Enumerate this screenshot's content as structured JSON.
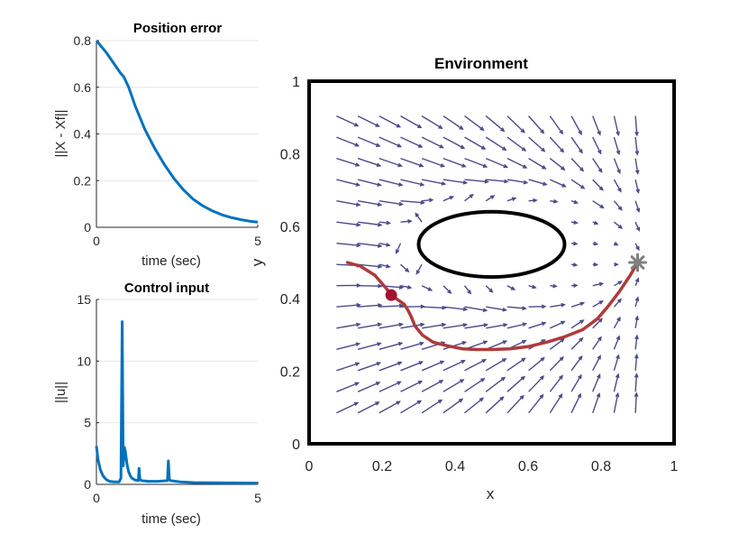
{
  "chart_data": [
    {
      "id": "position_error",
      "type": "line",
      "title": "Position error",
      "xlabel": "time (sec)",
      "ylabel": "||X - Xf||",
      "xlim": [
        0,
        5
      ],
      "ylim": [
        0,
        0.8
      ],
      "xticks": [
        0,
        5
      ],
      "yticks": [
        0,
        0.2,
        0.4,
        0.6,
        0.8
      ],
      "grid": "horizontal",
      "color": "#0072bd",
      "series": [
        {
          "name": "position error",
          "x": [
            0,
            0.3,
            0.6,
            0.75,
            0.85,
            1.0,
            1.2,
            1.5,
            1.8,
            2.1,
            2.4,
            2.7,
            3.0,
            3.3,
            3.6,
            3.9,
            4.2,
            4.5,
            4.8,
            5.0
          ],
          "y": [
            0.8,
            0.75,
            0.69,
            0.66,
            0.645,
            0.6,
            0.52,
            0.42,
            0.34,
            0.27,
            0.21,
            0.16,
            0.12,
            0.092,
            0.07,
            0.053,
            0.041,
            0.032,
            0.025,
            0.022
          ]
        }
      ]
    },
    {
      "id": "control_input",
      "type": "line",
      "title": "Control input",
      "xlabel": "time (sec)",
      "ylabel": "||u||",
      "xlim": [
        0,
        5
      ],
      "ylim": [
        0,
        15
      ],
      "xticks": [
        0,
        5
      ],
      "yticks": [
        0,
        5,
        10,
        15
      ],
      "grid": "horizontal",
      "color": "#0072bd",
      "series": [
        {
          "name": "control input",
          "x": [
            0,
            0.05,
            0.12,
            0.2,
            0.3,
            0.4,
            0.55,
            0.7,
            0.76,
            0.8,
            0.83,
            0.87,
            0.9,
            0.95,
            1.0,
            1.05,
            1.1,
            1.2,
            1.3,
            1.32,
            1.35,
            1.4,
            1.6,
            1.9,
            2.2,
            2.23,
            2.26,
            2.3,
            2.6,
            3.0,
            4.0,
            5.0
          ],
          "y": [
            3.1,
            2.0,
            1.2,
            0.7,
            0.4,
            0.25,
            0.2,
            0.2,
            0.5,
            13.2,
            1.5,
            3.0,
            2.6,
            1.6,
            1.0,
            0.7,
            0.5,
            0.35,
            0.3,
            1.3,
            0.4,
            0.3,
            0.25,
            0.25,
            0.3,
            1.9,
            0.4,
            0.3,
            0.2,
            0.15,
            0.12,
            0.1
          ]
        }
      ]
    },
    {
      "id": "environment",
      "type": "vector_field",
      "title": "Environment",
      "xlabel": "x",
      "ylabel": "y",
      "xlim": [
        0,
        1
      ],
      "ylim": [
        0,
        1
      ],
      "xticks": [
        0,
        0.2,
        0.4,
        0.6,
        0.8,
        1
      ],
      "yticks": [
        0,
        0.2,
        0.4,
        0.6,
        0.8,
        1
      ],
      "arrow_color": "#4a4a8c",
      "obstacle": {
        "shape": "ellipse",
        "cx": 0.5,
        "cy": 0.55,
        "rx": 0.2,
        "ry": 0.09,
        "color": "#000000"
      },
      "goal": {
        "x": 0.9,
        "y": 0.5,
        "marker": "asterisk",
        "color": "#808080"
      },
      "current_position": {
        "x": 0.225,
        "y": 0.41,
        "marker": "dot",
        "color": "#a2142f"
      },
      "trajectory": {
        "color": "#b03a3a",
        "x": [
          0.105,
          0.14,
          0.18,
          0.21,
          0.225,
          0.26,
          0.27,
          0.28,
          0.29,
          0.31,
          0.34,
          0.38,
          0.42,
          0.46,
          0.5,
          0.55,
          0.6,
          0.65,
          0.7,
          0.75,
          0.79,
          0.82,
          0.85,
          0.88,
          0.9
        ],
        "y": [
          0.5,
          0.49,
          0.465,
          0.43,
          0.41,
          0.385,
          0.37,
          0.35,
          0.325,
          0.3,
          0.28,
          0.27,
          0.262,
          0.26,
          0.26,
          0.262,
          0.268,
          0.28,
          0.295,
          0.315,
          0.345,
          0.38,
          0.42,
          0.465,
          0.5
        ]
      }
    }
  ]
}
